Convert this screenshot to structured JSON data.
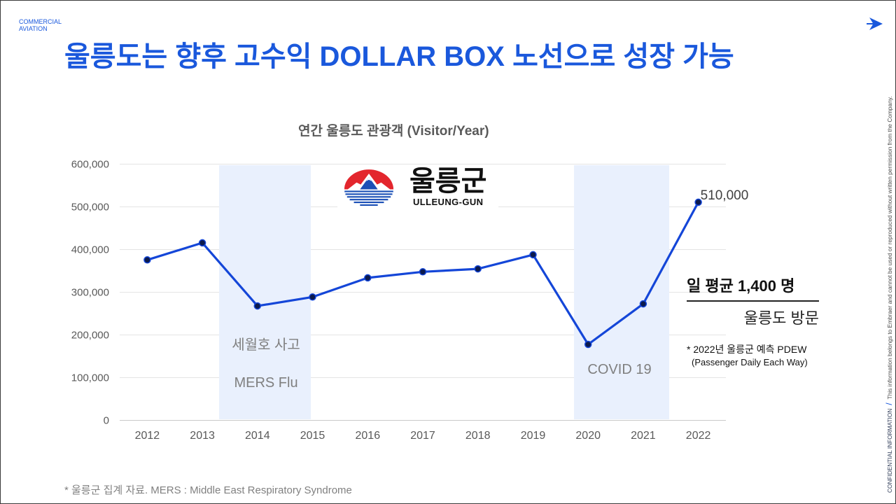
{
  "header": {
    "brand_line1": "COMMERCIAL",
    "brand_line2": "AVIATION",
    "logo_icon": "arrow-right-icon"
  },
  "colors": {
    "accent": "#1a58dc",
    "series_line": "#1446d8",
    "data_point": "#0b1a4d",
    "event_band": "#e9f0fd"
  },
  "title": "울릉도는 향후 고수익 DOLLAR BOX 노선으로 성장 가능",
  "logo": {
    "emblem_icon": "ulleung-gun-emblem-icon",
    "name_ko": "울릉군",
    "name_en": "ULLEUNG-GUN"
  },
  "chart_data": {
    "type": "line",
    "title": "연간 울릉도 관광객 (Visitor/Year)",
    "categories": [
      "2012",
      "2013",
      "2014",
      "2015",
      "2016",
      "2017",
      "2018",
      "2019",
      "2020",
      "2021",
      "2022"
    ],
    "series": [
      {
        "values": [
          375000,
          415000,
          267000,
          288000,
          333000,
          347000,
          354000,
          387000,
          177000,
          272000,
          510000
        ],
        "labels": [
          null,
          null,
          null,
          null,
          null,
          null,
          null,
          null,
          null,
          null,
          "510,000"
        ]
      }
    ],
    "ylim": [
      0,
      600000
    ],
    "yticks": [
      0,
      100000,
      200000,
      300000,
      400000,
      500000,
      600000
    ],
    "ytick_labels": [
      "0",
      "100,000",
      "200,000",
      "300,000",
      "400,000",
      "500,000",
      "600,000"
    ],
    "grid": true,
    "bands": [
      {
        "labels": [
          "세월호 사고",
          "MERS Flu"
        ]
      },
      {
        "labels": [
          "COVID 19"
        ]
      }
    ]
  },
  "callout": {
    "headline": "일 평균 1,400 명",
    "subline": "울릉도 방문",
    "note_line1": "* 2022년 울릉군 예측 PDEW",
    "note_line2": "(Passenger Daily Each Way)"
  },
  "footnote": "* 울릉군 집계 자료. MERS : Middle East Respiratory Syndrome",
  "side_notice": {
    "label": "CONFIDENTIAL INFORMATION",
    "separator": "/",
    "text": "This information belongs to Embraer and cannot be used or reproduced without written permission from the Company."
  }
}
